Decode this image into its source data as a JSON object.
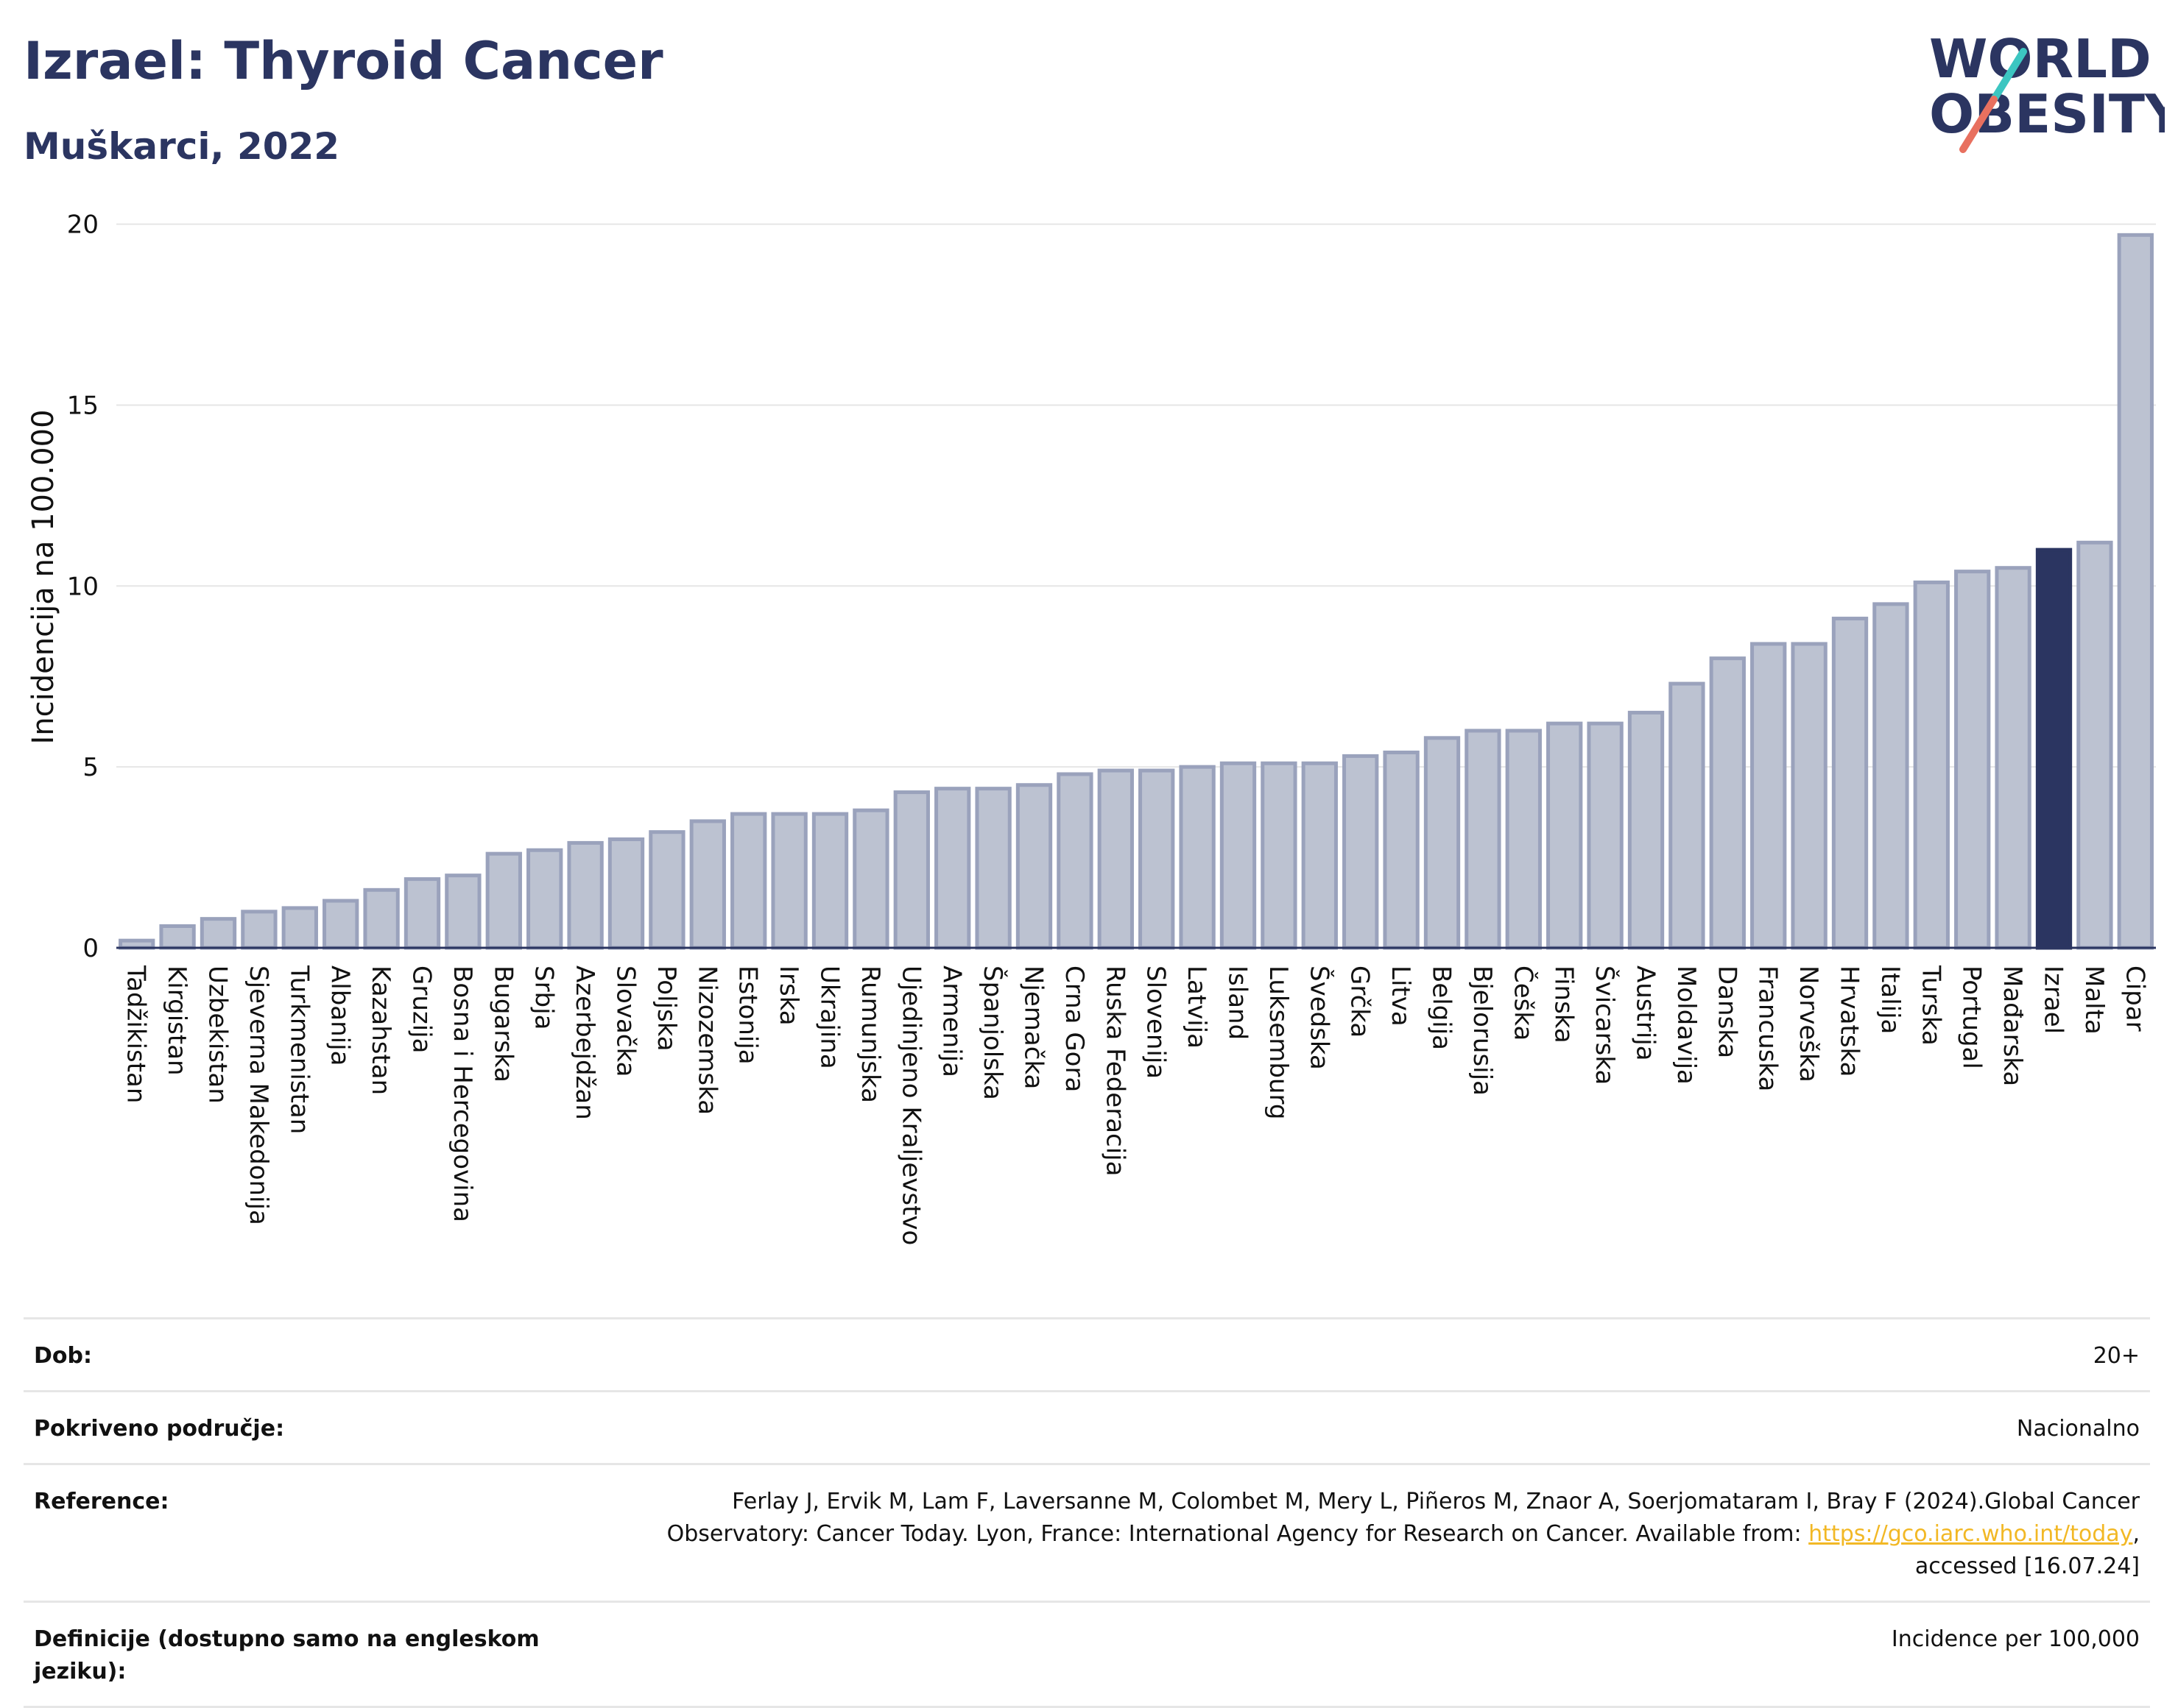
{
  "title": "Izrael: Thyroid Cancer",
  "subtitle": "Muškarci, 2022",
  "logo": {
    "line1": "WORLD",
    "line2": "OBESITY"
  },
  "colors": {
    "bar": "#bcc2d1",
    "bar_border": "#9aa2bc",
    "highlight": "#2b3561",
    "accent_teal": "#3cc6c1",
    "accent_red": "#e8705f",
    "grid": "#e6e6e6",
    "link": "#f2b825"
  },
  "chart_data": {
    "type": "bar",
    "title": "",
    "xlabel": "",
    "ylabel": "Incidencija na 100.000",
    "ylim": [
      0,
      20.5
    ],
    "yticks": [
      0,
      5,
      10,
      15,
      20
    ],
    "grid": true,
    "highlight": "Izrael",
    "categories": [
      "Tadžikistan",
      "Kirgistan",
      "Uzbekistan",
      "Sjeverna Makedonija",
      "Turkmenistan",
      "Albanija",
      "Kazahstan",
      "Gruzija",
      "Bosna i Hercegovina",
      "Bugarska",
      "Srbja",
      "Azerbejdžan",
      "Slovačka",
      "Poljska",
      "Nizozemska",
      "Estonija",
      "Irska",
      "Ukrajina",
      "Rumunjska",
      "Ujedinjeno Kraljevstvo",
      "Armenija",
      "Španjolska",
      "Njemačka",
      "Crna Gora",
      "Ruska Federacija",
      "Slovenija",
      "Latvija",
      "Island",
      "Luksemburg",
      "Švedska",
      "Grčka",
      "Litva",
      "Belgija",
      "Bjelorusija",
      "Češka",
      "Finska",
      "Švicarska",
      "Austrija",
      "Moldavija",
      "Danska",
      "Francuska",
      "Norveška",
      "Hrvatska",
      "Italija",
      "Turska",
      "Portugal",
      "Mađarska",
      "Izrael",
      "Malta",
      "Cipar"
    ],
    "values": [
      0.2,
      0.6,
      0.8,
      1.0,
      1.1,
      1.3,
      1.6,
      1.9,
      2.0,
      2.6,
      2.7,
      2.9,
      3.0,
      3.2,
      3.5,
      3.7,
      3.7,
      3.7,
      3.8,
      4.3,
      4.4,
      4.4,
      4.5,
      4.8,
      4.9,
      4.9,
      5.0,
      5.1,
      5.1,
      5.1,
      5.3,
      5.4,
      5.8,
      6.0,
      6.0,
      6.2,
      6.2,
      6.5,
      7.3,
      8.0,
      8.4,
      8.4,
      9.1,
      9.5,
      10.1,
      10.4,
      10.5,
      11.0,
      11.2,
      19.7
    ]
  },
  "info": {
    "age_label": "Dob:",
    "age_value": "20+",
    "coverage_label": "Pokriveno područje:",
    "coverage_value": "Nacionalno",
    "reference_label": "Reference:",
    "reference_text_1": "Ferlay J, Ervik M, Lam F, Laversanne M, Colombet M, Mery L, Piñeros M, Znaor A, Soerjomataram I, Bray F (2024).Global Cancer",
    "reference_text_2": "Observatory: Cancer Today. Lyon, France: International Agency for Research on Cancer. Available from: ",
    "reference_link": "https://gco.iarc.who.int/today",
    "reference_text_3": ",",
    "reference_text_4": "accessed [16.07.24]",
    "definitions_label": "Definicije (dostupno samo na engleskom jeziku):",
    "definitions_value": "Incidence per 100,000"
  }
}
